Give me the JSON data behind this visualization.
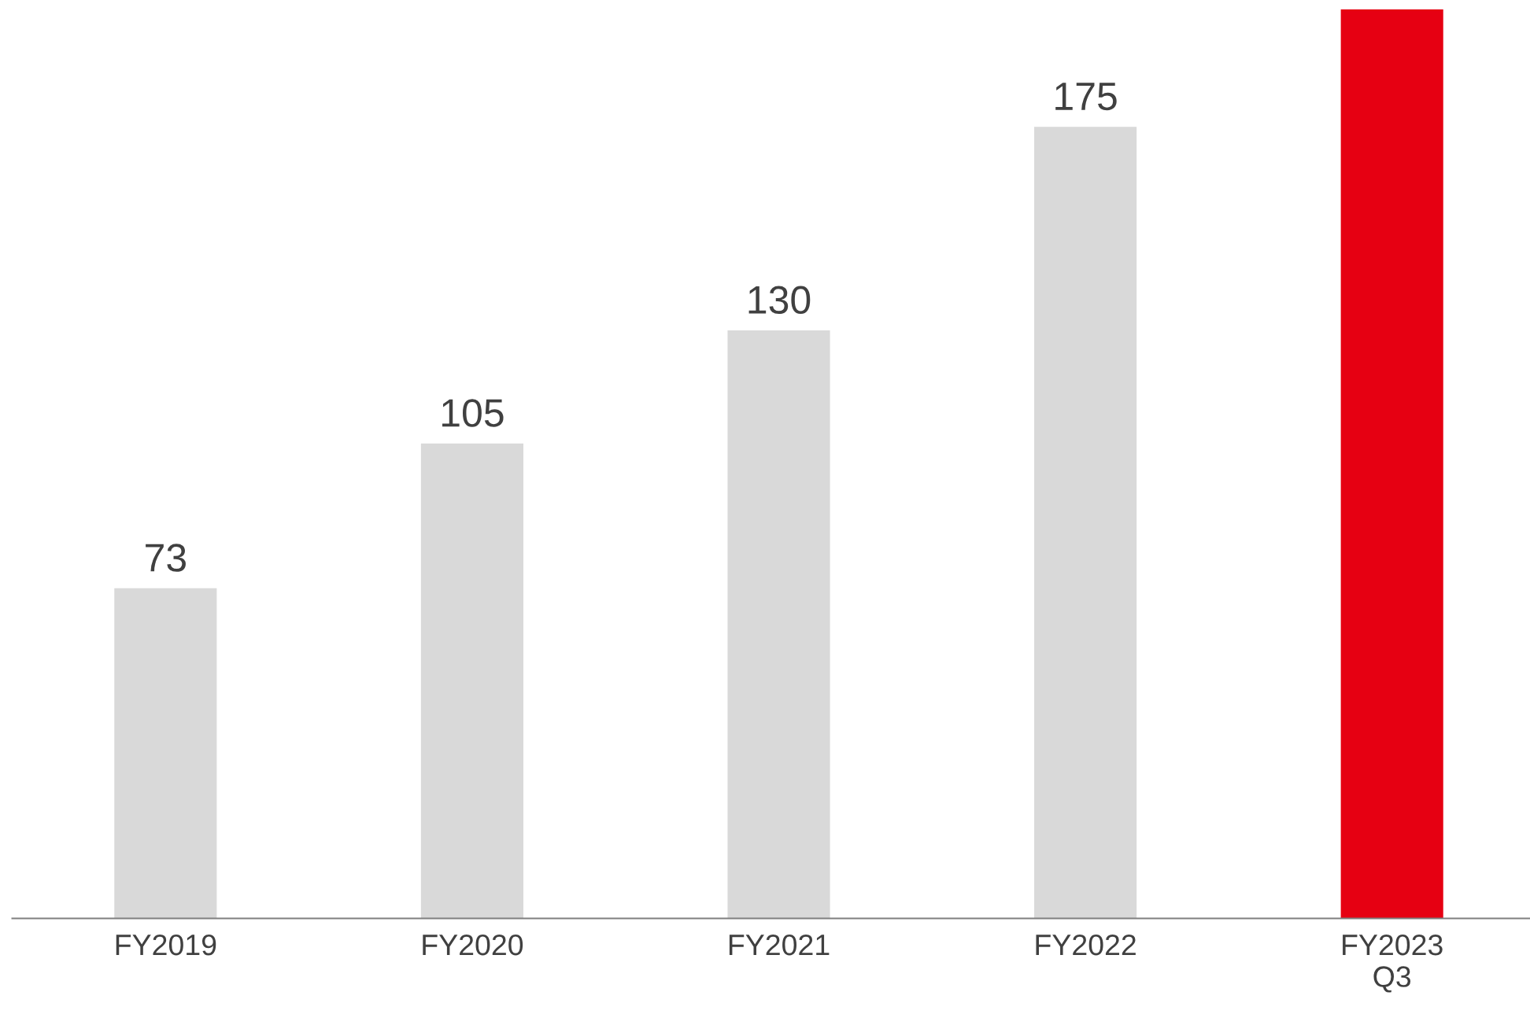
{
  "chart_data": {
    "type": "bar",
    "categories": [
      "FY2019",
      "FY2020",
      "FY2021",
      "FY2022",
      "FY2023\nQ3"
    ],
    "values": [
      73,
      105,
      130,
      175,
      201
    ],
    "colors": [
      "#d9d9d9",
      "#d9d9d9",
      "#d9d9d9",
      "#d9d9d9",
      "#e60012"
    ],
    "value_labels": [
      "73",
      "105",
      "130",
      "175",
      null
    ],
    "ylim": [
      0,
      201
    ],
    "tick_labels": "x",
    "grid": false,
    "legend": false
  }
}
